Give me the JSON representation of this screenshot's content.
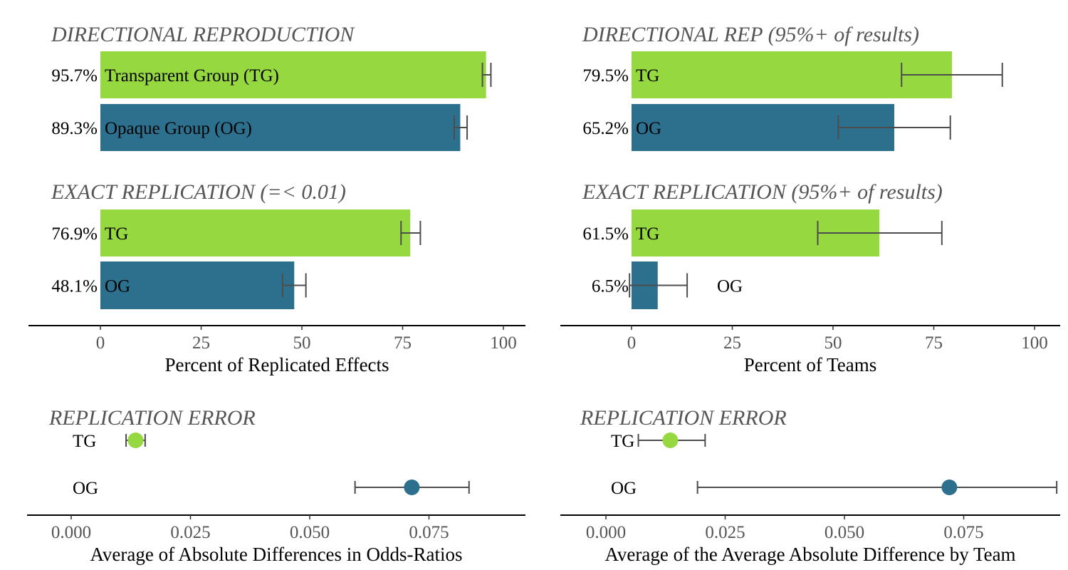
{
  "colors": {
    "TG": "#95d840",
    "OG": "#2c708e",
    "error_bar": "#4d4d4d",
    "title": "#555555"
  },
  "chart_data": [
    {
      "type": "bar",
      "orientation": "horizontal",
      "title": "DIRECTIONAL REPRODUCTION",
      "bars": [
        {
          "group": "TG",
          "label": "Transparent Group (TG)",
          "value": 95.7,
          "value_label": "95.7%",
          "ci": [
            94.8,
            96.9
          ]
        },
        {
          "group": "OG",
          "label": "Opaque Group (OG)",
          "value": 89.3,
          "value_label": "89.3%",
          "ci": [
            87.8,
            91.0
          ]
        }
      ]
    },
    {
      "type": "bar",
      "orientation": "horizontal",
      "title": "EXACT REPLICATION (=< 0.01)",
      "xlabel": "Percent of Replicated Effects",
      "xlim": [
        -17.6,
        105
      ],
      "xticks": [
        "0",
        "25",
        "50",
        "75",
        "100"
      ],
      "bars": [
        {
          "group": "TG",
          "label": "TG",
          "value": 76.9,
          "value_label": "76.9%",
          "ci": [
            74.6,
            79.4
          ]
        },
        {
          "group": "OG",
          "label": "OG",
          "value": 48.1,
          "value_label": "48.1%",
          "ci": [
            45.2,
            51.0
          ]
        }
      ]
    },
    {
      "type": "bar",
      "orientation": "horizontal",
      "title": "DIRECTIONAL REP (95%+ of results)",
      "bars": [
        {
          "group": "TG",
          "label": "TG",
          "value": 79.5,
          "value_label": "79.5%",
          "ci": [
            67.0,
            92.0
          ]
        },
        {
          "group": "OG",
          "label": "OG",
          "value": 65.2,
          "value_label": "65.2%",
          "ci": [
            51.3,
            79.1
          ]
        }
      ]
    },
    {
      "type": "bar",
      "orientation": "horizontal",
      "title": "EXACT REPLICATION (95%+ of results)",
      "xlabel": "Percent of Teams",
      "xlim": [
        -17.6,
        105
      ],
      "xticks": [
        "0",
        "25",
        "50",
        "75",
        "100"
      ],
      "bars": [
        {
          "group": "TG",
          "label": "TG",
          "value": 61.5,
          "value_label": "61.5%",
          "ci": [
            46.2,
            77.0
          ]
        },
        {
          "group": "OG",
          "label": "OG",
          "value": 6.5,
          "value_label": "6.5%",
          "ci": [
            -0.5,
            13.8
          ]
        }
      ]
    },
    {
      "type": "scatter",
      "title": "REPLICATION ERROR",
      "xlabel": "Average of Absolute Differences in Odds-Ratios",
      "xlim": [
        -0.0095,
        0.0945
      ],
      "xticks": [
        "0.000",
        "0.025",
        "0.050",
        "0.075"
      ],
      "points": [
        {
          "group": "TG",
          "label": "TG",
          "value": 0.0135,
          "ci": [
            0.0115,
            0.0155
          ]
        },
        {
          "group": "OG",
          "label": "OG",
          "value": 0.0714,
          "ci": [
            0.0595,
            0.0834
          ]
        }
      ]
    },
    {
      "type": "scatter",
      "title": "REPLICATION ERROR",
      "xlabel": "Average of the Average Absolute Difference by Team",
      "xlim": [
        -0.0095,
        0.0945
      ],
      "xticks": [
        "0.000",
        "0.025",
        "0.050",
        "0.075"
      ],
      "points": [
        {
          "group": "TG",
          "label": "TG",
          "value": 0.0135,
          "ci": [
            0.0068,
            0.0208
          ]
        },
        {
          "group": "OG",
          "label": "OG",
          "value": 0.072,
          "ci": [
            0.0192,
            0.0945
          ]
        }
      ]
    }
  ]
}
